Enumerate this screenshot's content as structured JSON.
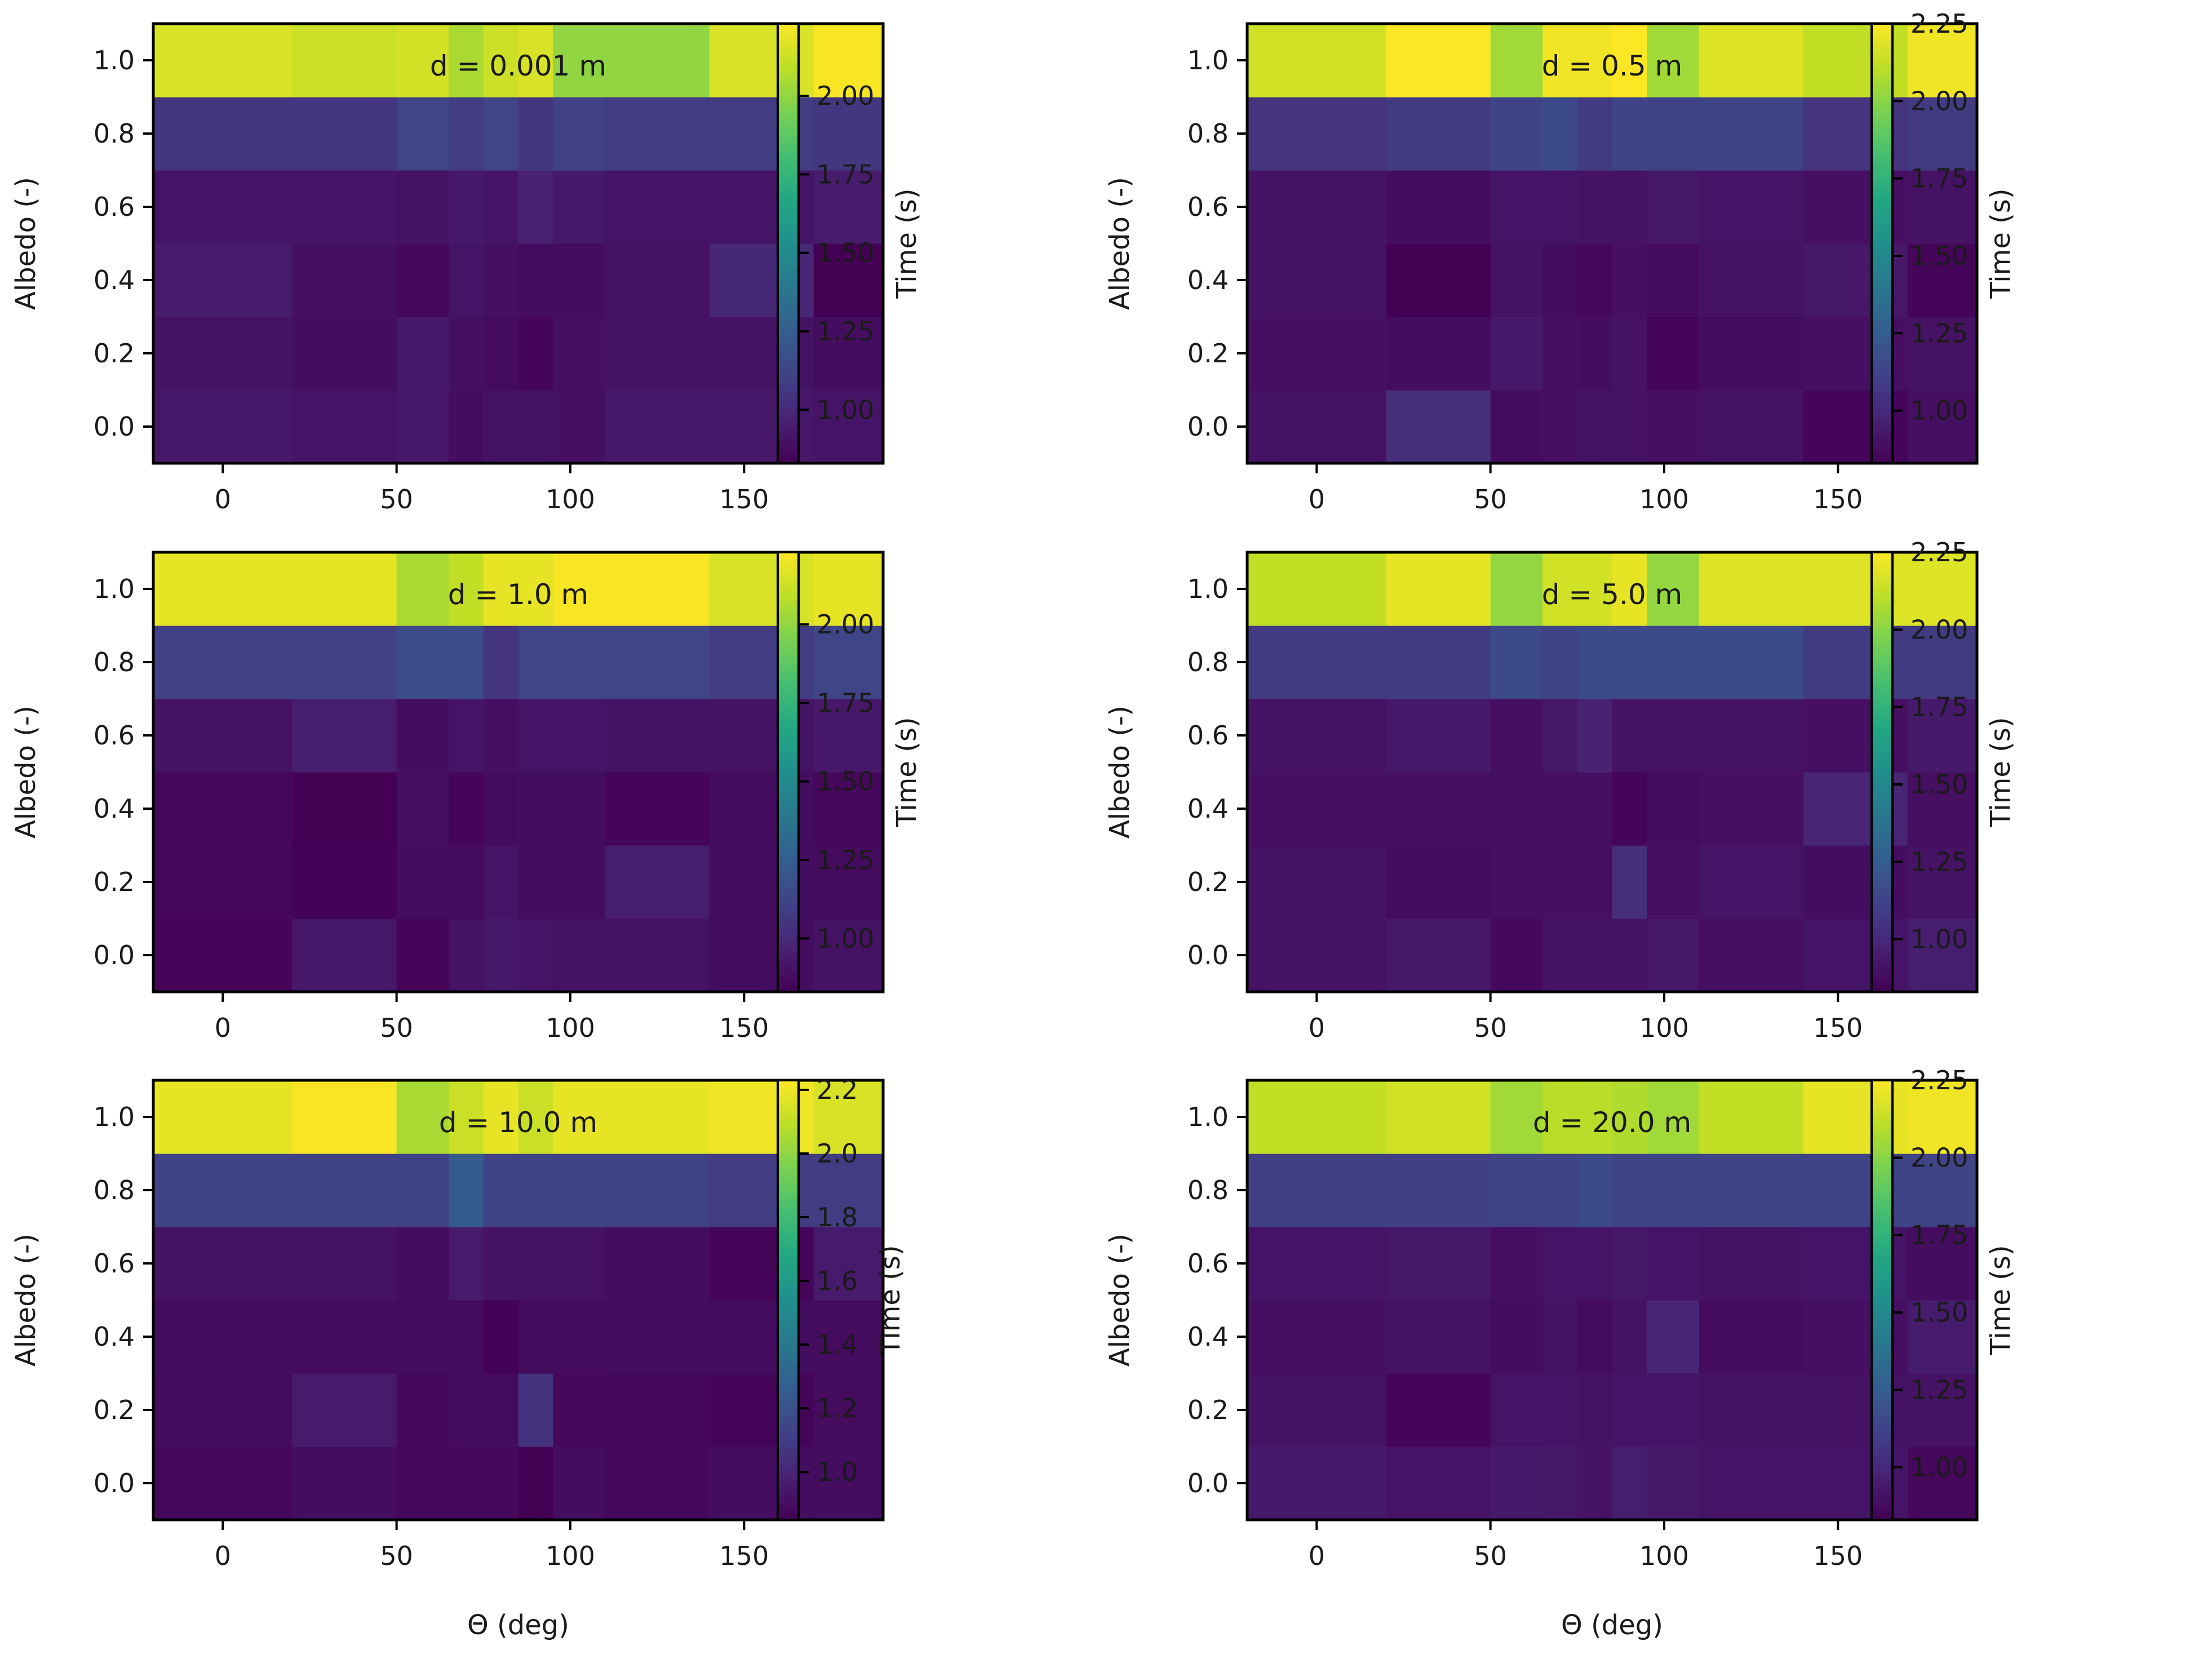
{
  "chart_data": {
    "type": "heatmap",
    "layout": "3x2 grid",
    "x_edges": [
      -20,
      20,
      50,
      65,
      75,
      85,
      95,
      110,
      140,
      170,
      190
    ],
    "y_edges": [
      -0.1,
      0.1,
      0.3,
      0.5,
      0.7,
      0.9,
      1.1
    ],
    "x_ticks": [
      "0",
      "50",
      "100",
      "150"
    ],
    "x_tick_values": [
      0,
      50,
      100,
      150
    ],
    "y_ticks": [
      "0.0",
      "0.2",
      "0.4",
      "0.6",
      "0.8",
      "1.0"
    ],
    "y_tick_values": [
      0.0,
      0.2,
      0.4,
      0.6,
      0.8,
      1.0
    ],
    "xlim": [
      -20,
      190
    ],
    "ylim": [
      -0.1,
      1.1
    ],
    "xlabel": "Θ (deg)",
    "ylabel": "Albedo (-)",
    "colorbar_label": "Time (s)",
    "colormap": "viridis",
    "panels": [
      {
        "title": "d = 0.001 m",
        "vmin": 0.83,
        "vmax": 2.23,
        "cbar_ticks": [
          "1.00",
          "1.25",
          "1.50",
          "1.75",
          "2.00"
        ],
        "cbar_tick_values": [
          1.0,
          1.25,
          1.5,
          1.75,
          2.0
        ],
        "values": [
          [
            0.92,
            0.91,
            0.92,
            0.88,
            0.9,
            0.9,
            0.89,
            0.92,
            0.92,
            0.91
          ],
          [
            0.9,
            0.88,
            0.93,
            0.89,
            0.87,
            0.85,
            0.89,
            0.9,
            0.9,
            0.88
          ],
          [
            0.94,
            0.89,
            0.86,
            0.91,
            0.89,
            0.88,
            0.88,
            0.9,
            0.99,
            0.82
          ],
          [
            0.91,
            0.91,
            0.9,
            0.93,
            0.91,
            0.96,
            0.93,
            0.91,
            0.91,
            0.94
          ],
          [
            1.05,
            1.05,
            1.12,
            1.08,
            1.12,
            1.05,
            1.1,
            1.08,
            1.08,
            1.06
          ],
          [
            2.15,
            2.12,
            2.14,
            2.05,
            2.12,
            2.15,
            2.0,
            2.0,
            2.15,
            2.22
          ]
        ]
      },
      {
        "title": "d = 0.5 m",
        "vmin": 0.83,
        "vmax": 2.25,
        "cbar_ticks": [
          "1.00",
          "1.25",
          "1.50",
          "1.75",
          "2.00",
          "2.25"
        ],
        "cbar_tick_values": [
          1.0,
          1.25,
          1.5,
          1.75,
          2.0,
          2.25
        ],
        "values": [
          [
            0.9,
            1.02,
            0.88,
            0.89,
            0.9,
            0.9,
            0.89,
            0.9,
            0.85,
            0.89
          ],
          [
            0.89,
            0.88,
            0.93,
            0.89,
            0.88,
            0.9,
            0.85,
            0.88,
            0.89,
            0.9
          ],
          [
            0.9,
            0.83,
            0.9,
            0.88,
            0.86,
            0.89,
            0.87,
            0.9,
            0.92,
            0.85
          ],
          [
            0.9,
            0.88,
            0.91,
            0.91,
            0.9,
            0.9,
            0.92,
            0.91,
            0.89,
            0.9
          ],
          [
            1.05,
            1.08,
            1.12,
            1.15,
            1.08,
            1.12,
            1.12,
            1.12,
            1.05,
            1.08
          ],
          [
            2.15,
            2.25,
            2.05,
            2.22,
            2.22,
            2.25,
            2.05,
            2.18,
            2.12,
            2.22
          ]
        ]
      },
      {
        "title": "d = 1.0 m",
        "vmin": 0.83,
        "vmax": 2.23,
        "cbar_ticks": [
          "1.00",
          "1.25",
          "1.50",
          "1.75",
          "2.00"
        ],
        "cbar_tick_values": [
          1.0,
          1.25,
          1.5,
          1.75,
          2.0
        ],
        "values": [
          [
            0.85,
            0.92,
            0.85,
            0.9,
            0.92,
            0.91,
            0.9,
            0.9,
            0.88,
            0.9
          ],
          [
            0.86,
            0.84,
            0.88,
            0.87,
            0.91,
            0.88,
            0.88,
            0.95,
            0.88,
            0.87
          ],
          [
            0.86,
            0.83,
            0.89,
            0.85,
            0.87,
            0.88,
            0.88,
            0.85,
            0.88,
            0.86
          ],
          [
            0.9,
            0.95,
            0.88,
            0.91,
            0.89,
            0.91,
            0.91,
            0.9,
            0.9,
            0.92
          ],
          [
            1.1,
            1.1,
            1.15,
            1.15,
            1.05,
            1.12,
            1.12,
            1.12,
            1.08,
            1.12
          ],
          [
            2.18,
            2.18,
            2.05,
            2.1,
            2.18,
            2.18,
            2.22,
            2.22,
            2.15,
            2.18
          ]
        ]
      },
      {
        "title": "d = 5.0 m",
        "vmin": 0.83,
        "vmax": 2.25,
        "cbar_ticks": [
          "1.00",
          "1.25",
          "1.50",
          "1.75",
          "2.00",
          "2.25"
        ],
        "cbar_tick_values": [
          1.0,
          1.25,
          1.5,
          1.75,
          2.0,
          2.25
        ],
        "values": [
          [
            0.9,
            0.92,
            0.86,
            0.9,
            0.9,
            0.9,
            0.92,
            0.89,
            0.91,
            0.95
          ],
          [
            0.9,
            0.87,
            0.89,
            0.89,
            0.89,
            1.02,
            0.89,
            0.91,
            0.88,
            0.9
          ],
          [
            0.89,
            0.89,
            0.89,
            0.89,
            0.89,
            0.85,
            0.88,
            0.89,
            0.98,
            0.89
          ],
          [
            0.9,
            0.93,
            0.89,
            0.92,
            0.97,
            0.9,
            0.9,
            0.9,
            0.89,
            0.93
          ],
          [
            1.08,
            1.08,
            1.15,
            1.12,
            1.15,
            1.15,
            1.15,
            1.15,
            1.08,
            1.08
          ],
          [
            2.12,
            2.2,
            2.02,
            2.15,
            2.15,
            2.2,
            2.02,
            2.18,
            2.18,
            2.18
          ]
        ]
      },
      {
        "title": "d = 10.0 m",
        "vmin": 0.85,
        "vmax": 2.23,
        "cbar_ticks": [
          "1.0",
          "1.2",
          "1.4",
          "1.6",
          "1.8",
          "2.0",
          "2.2"
        ],
        "cbar_tick_values": [
          1.0,
          1.2,
          1.4,
          1.6,
          1.8,
          2.0,
          2.2
        ],
        "values": [
          [
            0.88,
            0.9,
            0.88,
            0.88,
            0.88,
            0.85,
            0.9,
            0.88,
            0.9,
            0.9
          ],
          [
            0.89,
            0.95,
            0.88,
            0.89,
            0.89,
            1.05,
            0.88,
            0.88,
            0.87,
            0.89
          ],
          [
            0.9,
            0.89,
            0.9,
            0.89,
            0.86,
            0.89,
            0.89,
            0.9,
            0.9,
            0.89
          ],
          [
            0.92,
            0.92,
            0.89,
            0.95,
            0.92,
            0.92,
            0.92,
            0.9,
            0.87,
            0.95
          ],
          [
            1.12,
            1.12,
            1.12,
            1.25,
            1.12,
            1.12,
            1.12,
            1.12,
            1.1,
            1.1
          ],
          [
            2.18,
            2.22,
            2.05,
            2.12,
            2.18,
            2.12,
            2.18,
            2.18,
            2.2,
            2.15
          ]
        ]
      },
      {
        "title": "d = 20.0 m",
        "vmin": 0.83,
        "vmax": 2.25,
        "cbar_ticks": [
          "1.00",
          "1.25",
          "1.50",
          "1.75",
          "2.00",
          "2.25"
        ],
        "cbar_tick_values": [
          1.0,
          1.25,
          1.5,
          1.75,
          2.0,
          2.25
        ],
        "values": [
          [
            0.93,
            0.91,
            0.93,
            0.92,
            0.9,
            0.95,
            0.92,
            0.91,
            0.91,
            0.86
          ],
          [
            0.9,
            0.85,
            0.91,
            0.91,
            0.9,
            0.91,
            0.91,
            0.9,
            0.9,
            0.9
          ],
          [
            0.89,
            0.9,
            0.88,
            0.9,
            0.87,
            0.9,
            0.98,
            0.87,
            0.89,
            0.94
          ],
          [
            0.91,
            0.92,
            0.89,
            0.91,
            0.91,
            0.92,
            0.91,
            0.9,
            0.91,
            0.88
          ],
          [
            1.1,
            1.1,
            1.12,
            1.12,
            1.15,
            1.12,
            1.12,
            1.12,
            1.12,
            1.12
          ],
          [
            2.12,
            2.15,
            2.05,
            2.1,
            2.1,
            2.08,
            2.05,
            2.12,
            2.2,
            2.22
          ]
        ]
      }
    ]
  }
}
